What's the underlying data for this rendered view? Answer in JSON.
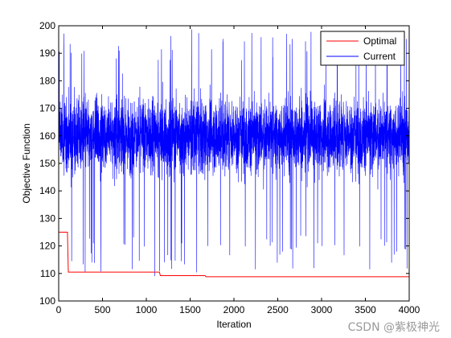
{
  "chart_data": {
    "type": "line",
    "xlabel": "Iteration",
    "ylabel": "Objective Function",
    "xlim": [
      0,
      4000
    ],
    "ylim": [
      100,
      200
    ],
    "x_ticks": [
      0,
      500,
      1000,
      1500,
      2000,
      2500,
      3000,
      3500,
      4000
    ],
    "y_ticks": [
      100,
      110,
      120,
      130,
      140,
      150,
      160,
      170,
      180,
      190,
      200
    ],
    "legend_position": "top-right",
    "series": [
      {
        "name": "Optimal",
        "color": "#ff0000",
        "step_points": [
          [
            0,
            125
          ],
          [
            100,
            125
          ],
          [
            110,
            110.5
          ],
          [
            1150,
            110.5
          ],
          [
            1160,
            109.2
          ],
          [
            1670,
            109.2
          ],
          [
            1680,
            108.8
          ],
          [
            4000,
            108.8
          ]
        ]
      },
      {
        "name": "Current",
        "color": "#0000ff",
        "mean": 160,
        "typical_range": [
          140,
          182
        ],
        "min": 108.8,
        "max": 199,
        "n_points": 4000
      }
    ]
  },
  "watermark": "CSDN @紫极神光"
}
